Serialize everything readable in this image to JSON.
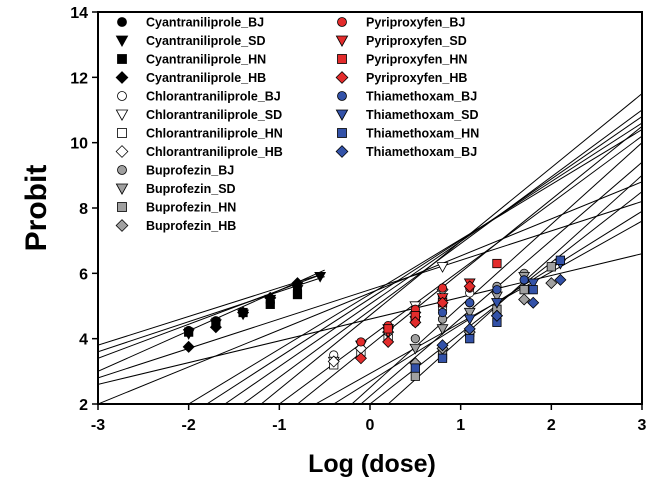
{
  "chart_data": {
    "type": "scatter",
    "xlabel": "Log (dose)",
    "ylabel": "Probit",
    "xlim": [
      -3,
      3
    ],
    "ylim": [
      2,
      14
    ],
    "xticks": [
      "-3",
      "-2",
      "-1",
      "0",
      "1",
      "2",
      "3"
    ],
    "yticks": [
      "2",
      "4",
      "6",
      "8",
      "10",
      "12",
      "14"
    ],
    "grid": false,
    "legend_position": "top-left",
    "series": [
      {
        "name": "Cyantraniliprole_BJ",
        "marker": "circle",
        "fill": "#000000",
        "x": [
          -2.0,
          -1.7,
          -1.4,
          -1.1,
          -0.8
        ],
        "y": [
          4.25,
          4.55,
          4.8,
          5.1,
          5.5
        ],
        "line": [
          -3,
          3.8,
          -0.5,
          6.0
        ]
      },
      {
        "name": "Cyantraniliprole_SD",
        "marker": "triangle-down",
        "fill": "#000000",
        "x": [
          -2.0,
          -1.7,
          -1.4,
          -1.1,
          -0.8,
          -0.55
        ],
        "y": [
          4.15,
          4.45,
          4.75,
          5.2,
          5.5,
          5.9
        ],
        "line": [
          -3,
          3.4,
          -0.5,
          6.0
        ]
      },
      {
        "name": "Cyantraniliprole_HN",
        "marker": "square",
        "fill": "#000000",
        "x": [
          -2.0,
          -1.7,
          -1.4,
          -1.1,
          -0.8
        ],
        "y": [
          4.2,
          4.5,
          4.8,
          5.05,
          5.35
        ],
        "line": [
          -3,
          3.6,
          -0.5,
          5.9
        ]
      },
      {
        "name": "Cyantraniliprole_HB",
        "marker": "diamond",
        "fill": "#000000",
        "x": [
          -2.0,
          -1.7,
          -1.4,
          -1.1,
          -0.8
        ],
        "y": [
          3.75,
          4.35,
          4.8,
          5.25,
          5.7
        ],
        "line": [
          -3,
          3.0,
          -0.5,
          6.1
        ]
      },
      {
        "name": "Chlorantraniliprole_BJ",
        "marker": "circle",
        "fill": "#ffffff",
        "x": [
          -0.4,
          -0.1,
          0.2,
          0.5,
          0.8,
          1.1
        ],
        "y": [
          3.5,
          3.7,
          4.1,
          4.5,
          4.9,
          5.4
        ],
        "line": [
          -3,
          2.0,
          3,
          8.8
        ]
      },
      {
        "name": "Chlorantraniliprole_SD",
        "marker": "triangle-down",
        "fill": "#ffffff",
        "x": [
          -0.4,
          -0.1,
          0.2,
          0.5,
          0.8
        ],
        "y": [
          3.3,
          3.8,
          4.3,
          5.0,
          6.2
        ],
        "line": [
          -1.2,
          2.0,
          3,
          11.5
        ]
      },
      {
        "name": "Chlorantraniliprole_HN",
        "marker": "square",
        "fill": "#ffffff",
        "x": [
          -0.4,
          -0.1,
          0.2,
          0.5,
          0.8
        ],
        "y": [
          3.2,
          3.6,
          4.0,
          4.6,
          5.2
        ],
        "line": [
          -0.8,
          2.0,
          3,
          10.5
        ]
      },
      {
        "name": "Chlorantraniliprole_HB",
        "marker": "diamond",
        "fill": "#ffffff",
        "x": [
          -0.4,
          -0.1,
          0.2,
          0.5,
          0.8
        ],
        "y": [
          3.3,
          3.7,
          4.2,
          4.8,
          5.5
        ],
        "line": [
          -1.0,
          2.0,
          3,
          10.2
        ]
      },
      {
        "name": "Buprofezin_BJ",
        "marker": "circle",
        "fill": "#a0a0a0",
        "x": [
          0.5,
          0.8,
          1.1,
          1.4,
          1.7
        ],
        "y": [
          4.0,
          4.6,
          5.1,
          5.6,
          6.0
        ],
        "line": [
          -0.2,
          2.0,
          3,
          10.0
        ]
      },
      {
        "name": "Buprofezin_SD",
        "marker": "triangle-down",
        "fill": "#a0a0a0",
        "x": [
          0.5,
          0.8,
          1.1,
          1.4,
          1.7
        ],
        "y": [
          3.7,
          4.3,
          4.8,
          5.3,
          5.9
        ],
        "line": [
          -0.1,
          2.0,
          3,
          9.4
        ]
      },
      {
        "name": "Buprofezin_HN",
        "marker": "square",
        "fill": "#a0a0a0",
        "x": [
          0.5,
          0.8,
          1.1,
          1.4,
          1.7,
          2.0
        ],
        "y": [
          2.85,
          3.5,
          4.2,
          4.9,
          5.5,
          6.2
        ],
        "line": [
          0.2,
          2.0,
          3,
          9.0
        ]
      },
      {
        "name": "Buprofezin_HB",
        "marker": "diamond",
        "fill": "#a0a0a0",
        "x": [
          0.5,
          0.8,
          1.1,
          1.4,
          1.7,
          2.0
        ],
        "y": [
          3.25,
          3.7,
          4.2,
          4.7,
          5.2,
          5.7
        ],
        "line": [
          0.0,
          2.0,
          3,
          8.5
        ]
      },
      {
        "name": "Pyriproxyfen_BJ",
        "marker": "circle",
        "fill": "#e32c2c",
        "x": [
          -0.1,
          0.2,
          0.5,
          0.8,
          1.1
        ],
        "y": [
          3.9,
          4.4,
          4.9,
          5.55,
          5.55
        ],
        "line": [
          -2.0,
          2.0,
          3,
          10.4
        ]
      },
      {
        "name": "Pyriproxyfen_SD",
        "marker": "triangle-down",
        "fill": "#e32c2c",
        "x": [
          0.2,
          0.5,
          0.8,
          1.1
        ],
        "y": [
          4.2,
          4.55,
          5.25,
          5.7
        ],
        "line": [
          -1.8,
          2.0,
          3,
          10.6
        ]
      },
      {
        "name": "Pyriproxyfen_HN",
        "marker": "square",
        "fill": "#e32c2c",
        "x": [
          0.2,
          0.5,
          0.8,
          1.4
        ],
        "y": [
          4.3,
          4.7,
          5.1,
          6.3
        ],
        "line": [
          -1.6,
          2.0,
          3,
          10.8
        ]
      },
      {
        "name": "Pyriproxyfen_HB",
        "marker": "diamond",
        "fill": "#e32c2c",
        "x": [
          -0.1,
          0.2,
          0.5,
          0.8,
          1.1
        ],
        "y": [
          3.4,
          3.9,
          4.5,
          5.1,
          5.6
        ],
        "line": [
          -1.4,
          2.0,
          3,
          11.0
        ]
      },
      {
        "name": "Thiamethoxam_BJ",
        "marker": "circle",
        "fill": "#3352a8",
        "x": [
          0.8,
          1.1,
          1.4,
          1.7
        ],
        "y": [
          4.8,
          5.1,
          5.5,
          5.8
        ],
        "line": [
          -3,
          2.8,
          3,
          8.2
        ]
      },
      {
        "name": "Thiamethoxam_SD",
        "marker": "triangle-down",
        "fill": "#3352a8",
        "x": [
          1.1,
          1.4,
          1.8,
          2.1
        ],
        "y": [
          4.6,
          5.1,
          5.7,
          6.3
        ],
        "line": [
          -0.6,
          2.0,
          3,
          7.6
        ]
      },
      {
        "name": "Thiamethoxam_HN",
        "marker": "square",
        "fill": "#3352a8",
        "x": [
          0.5,
          0.8,
          1.1,
          1.4,
          1.8,
          2.1
        ],
        "y": [
          3.1,
          3.4,
          4.0,
          4.5,
          5.5,
          6.4
        ],
        "line": [
          -0.4,
          2.0,
          3,
          7.9
        ]
      },
      {
        "name": "Thiamethoxam_BJ",
        "marker": "diamond",
        "fill": "#3352a8",
        "x": [
          0.8,
          1.1,
          1.4,
          1.8,
          2.1
        ],
        "y": [
          3.8,
          4.3,
          4.7,
          5.1,
          5.8
        ],
        "line": [
          -3,
          2.6,
          3,
          6.6
        ]
      }
    ]
  }
}
